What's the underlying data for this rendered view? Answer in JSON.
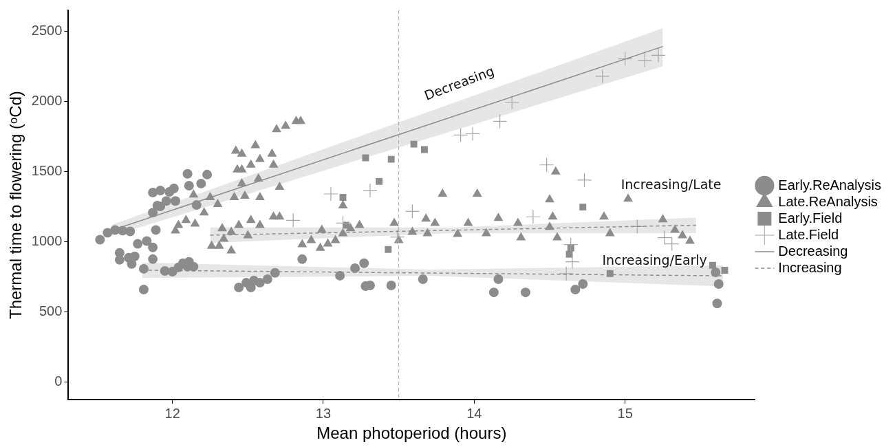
{
  "chart_data": {
    "type": "scatter",
    "xlabel": "Mean photoperiod (hours)",
    "ylabel": "Thermal time to flowering (ᵒCd)",
    "xlim": [
      11.31,
      15.86
    ],
    "ylim": [
      -128,
      2648
    ],
    "xticks": [
      12,
      13,
      14,
      15
    ],
    "yticks": [
      0,
      500,
      1000,
      1500,
      2000,
      2500
    ],
    "legend": "right",
    "series": [
      {
        "name": "Early.ReAnalysis",
        "color": "#8c8c8c",
        "marker": "circle",
        "x": [
          11.52,
          11.57,
          11.62,
          11.67,
          11.72,
          11.65,
          11.65,
          11.71,
          11.75,
          11.73,
          11.81,
          11.81,
          11.77,
          11.83,
          11.87,
          11.87,
          11.89,
          11.87,
          11.9,
          11.87,
          11.92,
          11.92,
          11.96,
          11.98,
          12.01,
          12.02,
          12.11,
          12.1,
          12.23,
          12.19,
          12.16,
          11.95,
          12.0,
          12.04,
          12.07,
          12.11,
          12.1,
          12.14,
          12.44,
          12.52,
          12.49,
          12.54,
          12.58,
          12.63,
          12.68,
          12.86,
          13.11,
          13.21,
          13.27,
          13.28,
          13.31,
          13.45,
          13.66,
          14.16,
          14.13,
          14.34,
          14.67,
          14.72,
          15.62,
          15.61,
          15.6
        ],
        "values": [
          1013,
          1062,
          1082,
          1077,
          1072,
          919,
          869,
          884,
          894,
          840,
          805,
          657,
          983,
          1003,
          958,
          874,
          1082,
          1205,
          1255,
          1349,
          1363,
          1250,
          1289,
          1354,
          1378,
          1289,
          1398,
          1482,
          1477,
          1413,
          1260,
          790,
          785,
          815,
          845,
          855,
          820,
          820,
          672,
          672,
          706,
          721,
          706,
          731,
          776,
          874,
          756,
          810,
          845,
          682,
          687,
          687,
          731,
          731,
          637,
          637,
          657,
          697,
          697,
          558,
          780
        ]
      },
      {
        "name": "Late.ReAnalysis",
        "color": "#8c8c8c",
        "marker": "triangle",
        "x": [
          12.42,
          12.46,
          12.55,
          12.52,
          12.58,
          12.66,
          12.67,
          12.69,
          12.75,
          12.82,
          12.85,
          12.43,
          12.46,
          12.46,
          12.57,
          12.41,
          12.48,
          12.58,
          12.71,
          12.25,
          12.14,
          12.3,
          12.21,
          12.09,
          12.04,
          12.02,
          12.15,
          12.33,
          12.39,
          12.44,
          12.52,
          12.58,
          12.67,
          12.71,
          12.5,
          12.26,
          12.31,
          12.34,
          12.39,
          12.86,
          12.92,
          12.99,
          12.98,
          13.03,
          13.08,
          13.13,
          13.18,
          13.24,
          13.13,
          13.47,
          13.5,
          13.59,
          13.68,
          13.74,
          13.69,
          13.79,
          14.02,
          13.89,
          13.96,
          14.08,
          14.16,
          14.29,
          14.31,
          14.5,
          14.54,
          14.52,
          14.5,
          14.55,
          15.02,
          14.86,
          14.9,
          15.25,
          15.33,
          15.38,
          15.43
        ],
        "values": [
          1645,
          1625,
          1685,
          1546,
          1586,
          1625,
          1546,
          1798,
          1823,
          1857,
          1857,
          1512,
          1512,
          1413,
          1447,
          1314,
          1324,
          1314,
          1388,
          1314,
          1333,
          1265,
          1205,
          1151,
          1116,
          1077,
          1126,
          1092,
          1067,
          1116,
          1151,
          1116,
          1176,
          1176,
          1042,
          968,
          968,
          1018,
          934,
          978,
          1008,
          1082,
          953,
          983,
          1008,
          1057,
          1092,
          1116,
          1255,
          1131,
          1008,
          1067,
          1161,
          1131,
          1057,
          1339,
          1339,
          1052,
          1131,
          1057,
          1166,
          1131,
          1027,
          1299,
          1497,
          1176,
          1102,
          1027,
          1304,
          1176,
          1057,
          1156,
          1082,
          1042,
          1003
        ]
      },
      {
        "name": "Early.Field",
        "color": "#8c8c8c",
        "marker": "square",
        "x": [
          13.28,
          13.45,
          13.37,
          13.6,
          13.67,
          13.43,
          13.13,
          13.15,
          14.72,
          14.64,
          14.63,
          14.9,
          15.58,
          15.66
        ],
        "values": [
          1596,
          1586,
          1428,
          1694,
          1655,
          943,
          1314,
          1116,
          1245,
          953,
          909,
          771,
          830,
          795
        ]
      },
      {
        "name": "Late.Field",
        "color": "#a6a6a6",
        "marker": "cross",
        "x": [
          14.85,
          15.0,
          15.13,
          15.22,
          14.73,
          15.08,
          15.26,
          15.31,
          14.64,
          14.65,
          14.61,
          14.25,
          14.17,
          13.91,
          13.99,
          14.48,
          14.39,
          13.31,
          13.59,
          13.49,
          13.05,
          12.8,
          13.13
        ],
        "values": [
          2178,
          2302,
          2292,
          2327,
          1438,
          1107,
          1027,
          983,
          978,
          855,
          771,
          1991,
          1857,
          1759,
          1768,
          1546,
          1176,
          1363,
          1215,
          1032,
          1339,
          1151,
          1131
        ]
      },
      {
        "name": "Decreasing",
        "type": "line",
        "color": "#8c8c8c",
        "marker": "none",
        "line_style": "solid",
        "x": [
          11.6,
          15.25
        ],
        "values": [
          1080,
          2390
        ],
        "lower": [
          1040,
          2250
        ],
        "upper": [
          1120,
          2520
        ]
      },
      {
        "name": "Increasing",
        "type": "line",
        "color": "#8c8c8c",
        "marker": "none",
        "line_style": "dashed",
        "x": [
          12.25,
          13.85,
          15.47
        ],
        "values": [
          1045,
          1080,
          1116
        ],
        "lower": [
          990,
          1060,
          1060
        ],
        "upper": [
          1100,
          1100,
          1170
        ]
      },
      {
        "type": "line",
        "color": "#8c8c8c",
        "marker": "none",
        "line_style": "dashed",
        "x": [
          11.8,
          13.7,
          15.65
        ],
        "values": [
          795,
          775,
          755
        ],
        "lower": [
          740,
          755,
          680
        ],
        "upper": [
          850,
          800,
          830
        ]
      }
    ],
    "ref_lines": [
      {
        "axis": "x",
        "value": 13.5,
        "color": "#a6a6a6",
        "line_style": "dashed"
      }
    ],
    "annotations": [
      "Decreasing",
      "Increasing/Late",
      "Increasing/Early"
    ]
  }
}
